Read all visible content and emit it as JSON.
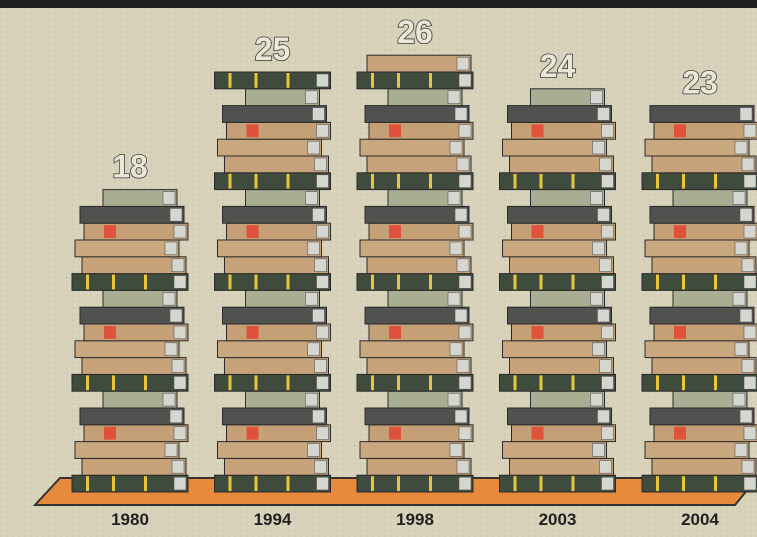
{
  "chart_data": {
    "type": "bar",
    "categories": [
      "1980",
      "1994",
      "1998",
      "2003",
      "2004"
    ],
    "values": [
      18,
      25,
      26,
      24,
      23
    ]
  }
}
